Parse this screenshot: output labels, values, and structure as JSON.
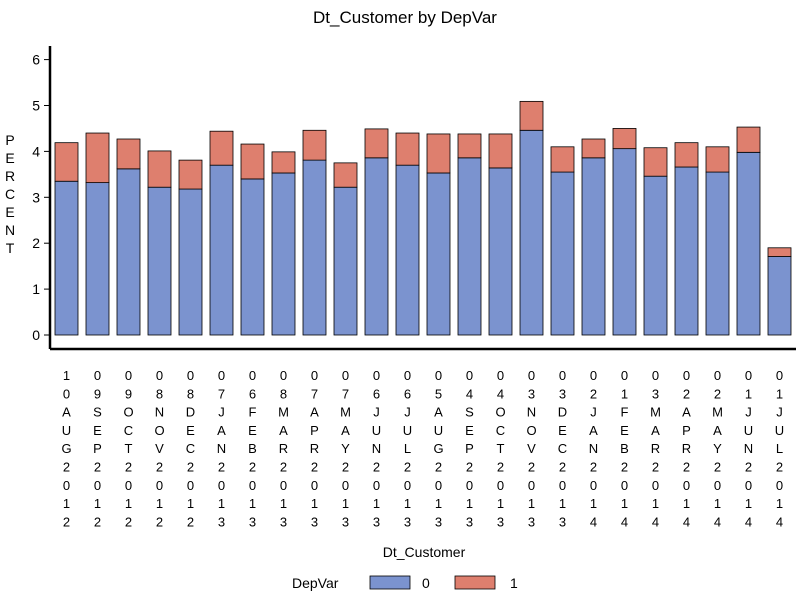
{
  "chart_data": {
    "type": "bar",
    "stacked": true,
    "title": "Dt_Customer by DepVar",
    "xlabel": "Dt_Customer",
    "ylabel": "PERCENT",
    "ylim": [
      0,
      6.2
    ],
    "yticks": [
      "0",
      "1",
      "2",
      "3",
      "4",
      "5",
      "6"
    ],
    "categories": [
      "10AUG2012",
      "09SEP2012",
      "09OCT2012",
      "08NOV2012",
      "08DEC2012",
      "07JAN2013",
      "06FEB2013",
      "08MAR2013",
      "07APR2013",
      "07MAY2013",
      "06JUN2013",
      "06JUL2013",
      "05AUG2013",
      "04SEP2013",
      "04OCT2013",
      "03NOV2013",
      "03DEC2013",
      "02JAN2014",
      "01FEB2014",
      "03MAR2014",
      "02APR2014",
      "02MAY2014",
      "01JUN2014",
      "01JUL2014"
    ],
    "legend": {
      "title": "DepVar",
      "position": "bottom"
    },
    "series": [
      {
        "name": "0",
        "color": "#7b93cf",
        "values": [
          3.35,
          3.32,
          3.62,
          3.22,
          3.18,
          3.7,
          3.4,
          3.53,
          3.81,
          3.22,
          3.86,
          3.7,
          3.53,
          3.86,
          3.64,
          4.46,
          3.55,
          3.86,
          4.06,
          3.46,
          3.66,
          3.55,
          3.98,
          1.71
        ]
      },
      {
        "name": "1",
        "color": "#de7f6e",
        "values": [
          0.84,
          1.08,
          0.65,
          0.79,
          0.63,
          0.74,
          0.76,
          0.46,
          0.65,
          0.53,
          0.63,
          0.7,
          0.85,
          0.52,
          0.74,
          0.63,
          0.55,
          0.41,
          0.44,
          0.62,
          0.53,
          0.55,
          0.55,
          0.19
        ]
      }
    ]
  }
}
